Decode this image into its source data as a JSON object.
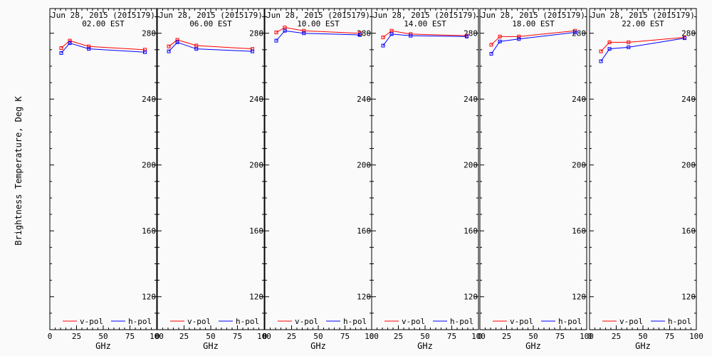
{
  "figure": {
    "ylabel": "Brightness Temperature, Deg K",
    "xlabel": "GHz",
    "legend": [
      "v-pol",
      "h-pol"
    ],
    "colors": {
      "v-pol": "#ff0000",
      "h-pol": "#0000ff",
      "axes": "#000000",
      "background": "#fafafa"
    }
  },
  "chart_data": [
    {
      "type": "line",
      "title": "Jun 28, 2015 (2015179)",
      "subtitle": "02.00 EST",
      "xlabel": "GHz",
      "ylabel": "Brightness Temperature, Deg K",
      "xlim": [
        0,
        100
      ],
      "ylim": [
        100,
        295
      ],
      "xticks": [
        "0",
        "25",
        "50",
        "75",
        "100"
      ],
      "yticks": [
        "120",
        "160",
        "200",
        "240",
        "280"
      ],
      "x": [
        10.7,
        18.7,
        36.5,
        89.0
      ],
      "series": [
        {
          "name": "v-pol",
          "color": "#ff0000",
          "values": [
            271.0,
            275.5,
            272.0,
            270.0
          ]
        },
        {
          "name": "h-pol",
          "color": "#0000ff",
          "values": [
            268.0,
            274.0,
            270.5,
            268.5
          ]
        }
      ],
      "legend_placement": "bottom"
    },
    {
      "type": "line",
      "title": "Jun 28, 2015 (2015179)",
      "subtitle": "06.00 EST",
      "xlabel": "GHz",
      "ylabel": "Brightness Temperature, Deg K",
      "xlim": [
        0,
        100
      ],
      "ylim": [
        100,
        295
      ],
      "xticks": [
        "0",
        "25",
        "50",
        "75",
        "100"
      ],
      "yticks": [
        "120",
        "160",
        "200",
        "240",
        "280"
      ],
      "x": [
        10.7,
        18.7,
        36.5,
        89.0
      ],
      "series": [
        {
          "name": "v-pol",
          "color": "#ff0000",
          "values": [
            272.0,
            276.0,
            272.5,
            270.5
          ]
        },
        {
          "name": "h-pol",
          "color": "#0000ff",
          "values": [
            269.0,
            274.5,
            270.5,
            269.0
          ]
        }
      ],
      "legend_placement": "bottom"
    },
    {
      "type": "line",
      "title": "Jun 28, 2015 (2015179)",
      "subtitle": "10.00 EST",
      "xlabel": "GHz",
      "ylabel": "Brightness Temperature, Deg K",
      "xlim": [
        0,
        100
      ],
      "ylim": [
        100,
        295
      ],
      "xticks": [
        "0",
        "25",
        "50",
        "75",
        "100"
      ],
      "yticks": [
        "120",
        "160",
        "200",
        "240",
        "280"
      ],
      "x": [
        10.7,
        18.7,
        36.5,
        89.0
      ],
      "series": [
        {
          "name": "v-pol",
          "color": "#ff0000",
          "values": [
            280.5,
            283.5,
            281.5,
            280.0
          ]
        },
        {
          "name": "h-pol",
          "color": "#0000ff",
          "values": [
            275.5,
            281.5,
            280.0,
            279.0
          ]
        }
      ],
      "legend_placement": "bottom"
    },
    {
      "type": "line",
      "title": "Jun 28, 2015 (2015179)",
      "subtitle": "14.00 EST",
      "xlabel": "GHz",
      "ylabel": "Brightness Temperature, Deg K",
      "xlim": [
        0,
        100
      ],
      "ylim": [
        100,
        295
      ],
      "xticks": [
        "0",
        "25",
        "50",
        "75",
        "100"
      ],
      "yticks": [
        "120",
        "160",
        "200",
        "240",
        "280"
      ],
      "x": [
        10.7,
        18.7,
        36.5,
        89.0
      ],
      "series": [
        {
          "name": "v-pol",
          "color": "#ff0000",
          "values": [
            277.5,
            281.5,
            279.5,
            278.5
          ]
        },
        {
          "name": "h-pol",
          "color": "#0000ff",
          "values": [
            272.5,
            279.5,
            278.5,
            278.0
          ]
        }
      ],
      "legend_placement": "bottom"
    },
    {
      "type": "line",
      "title": "Jun 28, 2015 (2015179)",
      "subtitle": "18.00 EST",
      "xlabel": "GHz",
      "ylabel": "Brightness Temperature, Deg K",
      "xlim": [
        0,
        100
      ],
      "ylim": [
        100,
        295
      ],
      "xticks": [
        "0",
        "25",
        "50",
        "75",
        "100"
      ],
      "yticks": [
        "120",
        "160",
        "200",
        "240",
        "280"
      ],
      "x": [
        10.7,
        18.7,
        36.5,
        89.0
      ],
      "series": [
        {
          "name": "v-pol",
          "color": "#ff0000",
          "values": [
            273.0,
            278.0,
            278.0,
            281.5
          ]
        },
        {
          "name": "h-pol",
          "color": "#0000ff",
          "values": [
            267.5,
            275.0,
            276.5,
            280.5
          ]
        }
      ],
      "legend_placement": "bottom"
    },
    {
      "type": "line",
      "title": "Jun 28, 2015 (2015179)",
      "subtitle": "22.00 EST",
      "xlabel": "GHz",
      "ylabel": "Brightness Temperature, Deg K",
      "xlim": [
        0,
        100
      ],
      "ylim": [
        100,
        295
      ],
      "xticks": [
        "0",
        "25",
        "50",
        "75",
        "100"
      ],
      "yticks": [
        "120",
        "160",
        "200",
        "240",
        "280"
      ],
      "x": [
        10.7,
        18.7,
        36.5,
        89.0
      ],
      "series": [
        {
          "name": "v-pol",
          "color": "#ff0000",
          "values": [
            269.0,
            274.5,
            274.5,
            277.5
          ]
        },
        {
          "name": "h-pol",
          "color": "#0000ff",
          "values": [
            263.0,
            270.5,
            271.5,
            277.0
          ]
        }
      ],
      "legend_placement": "bottom"
    }
  ]
}
